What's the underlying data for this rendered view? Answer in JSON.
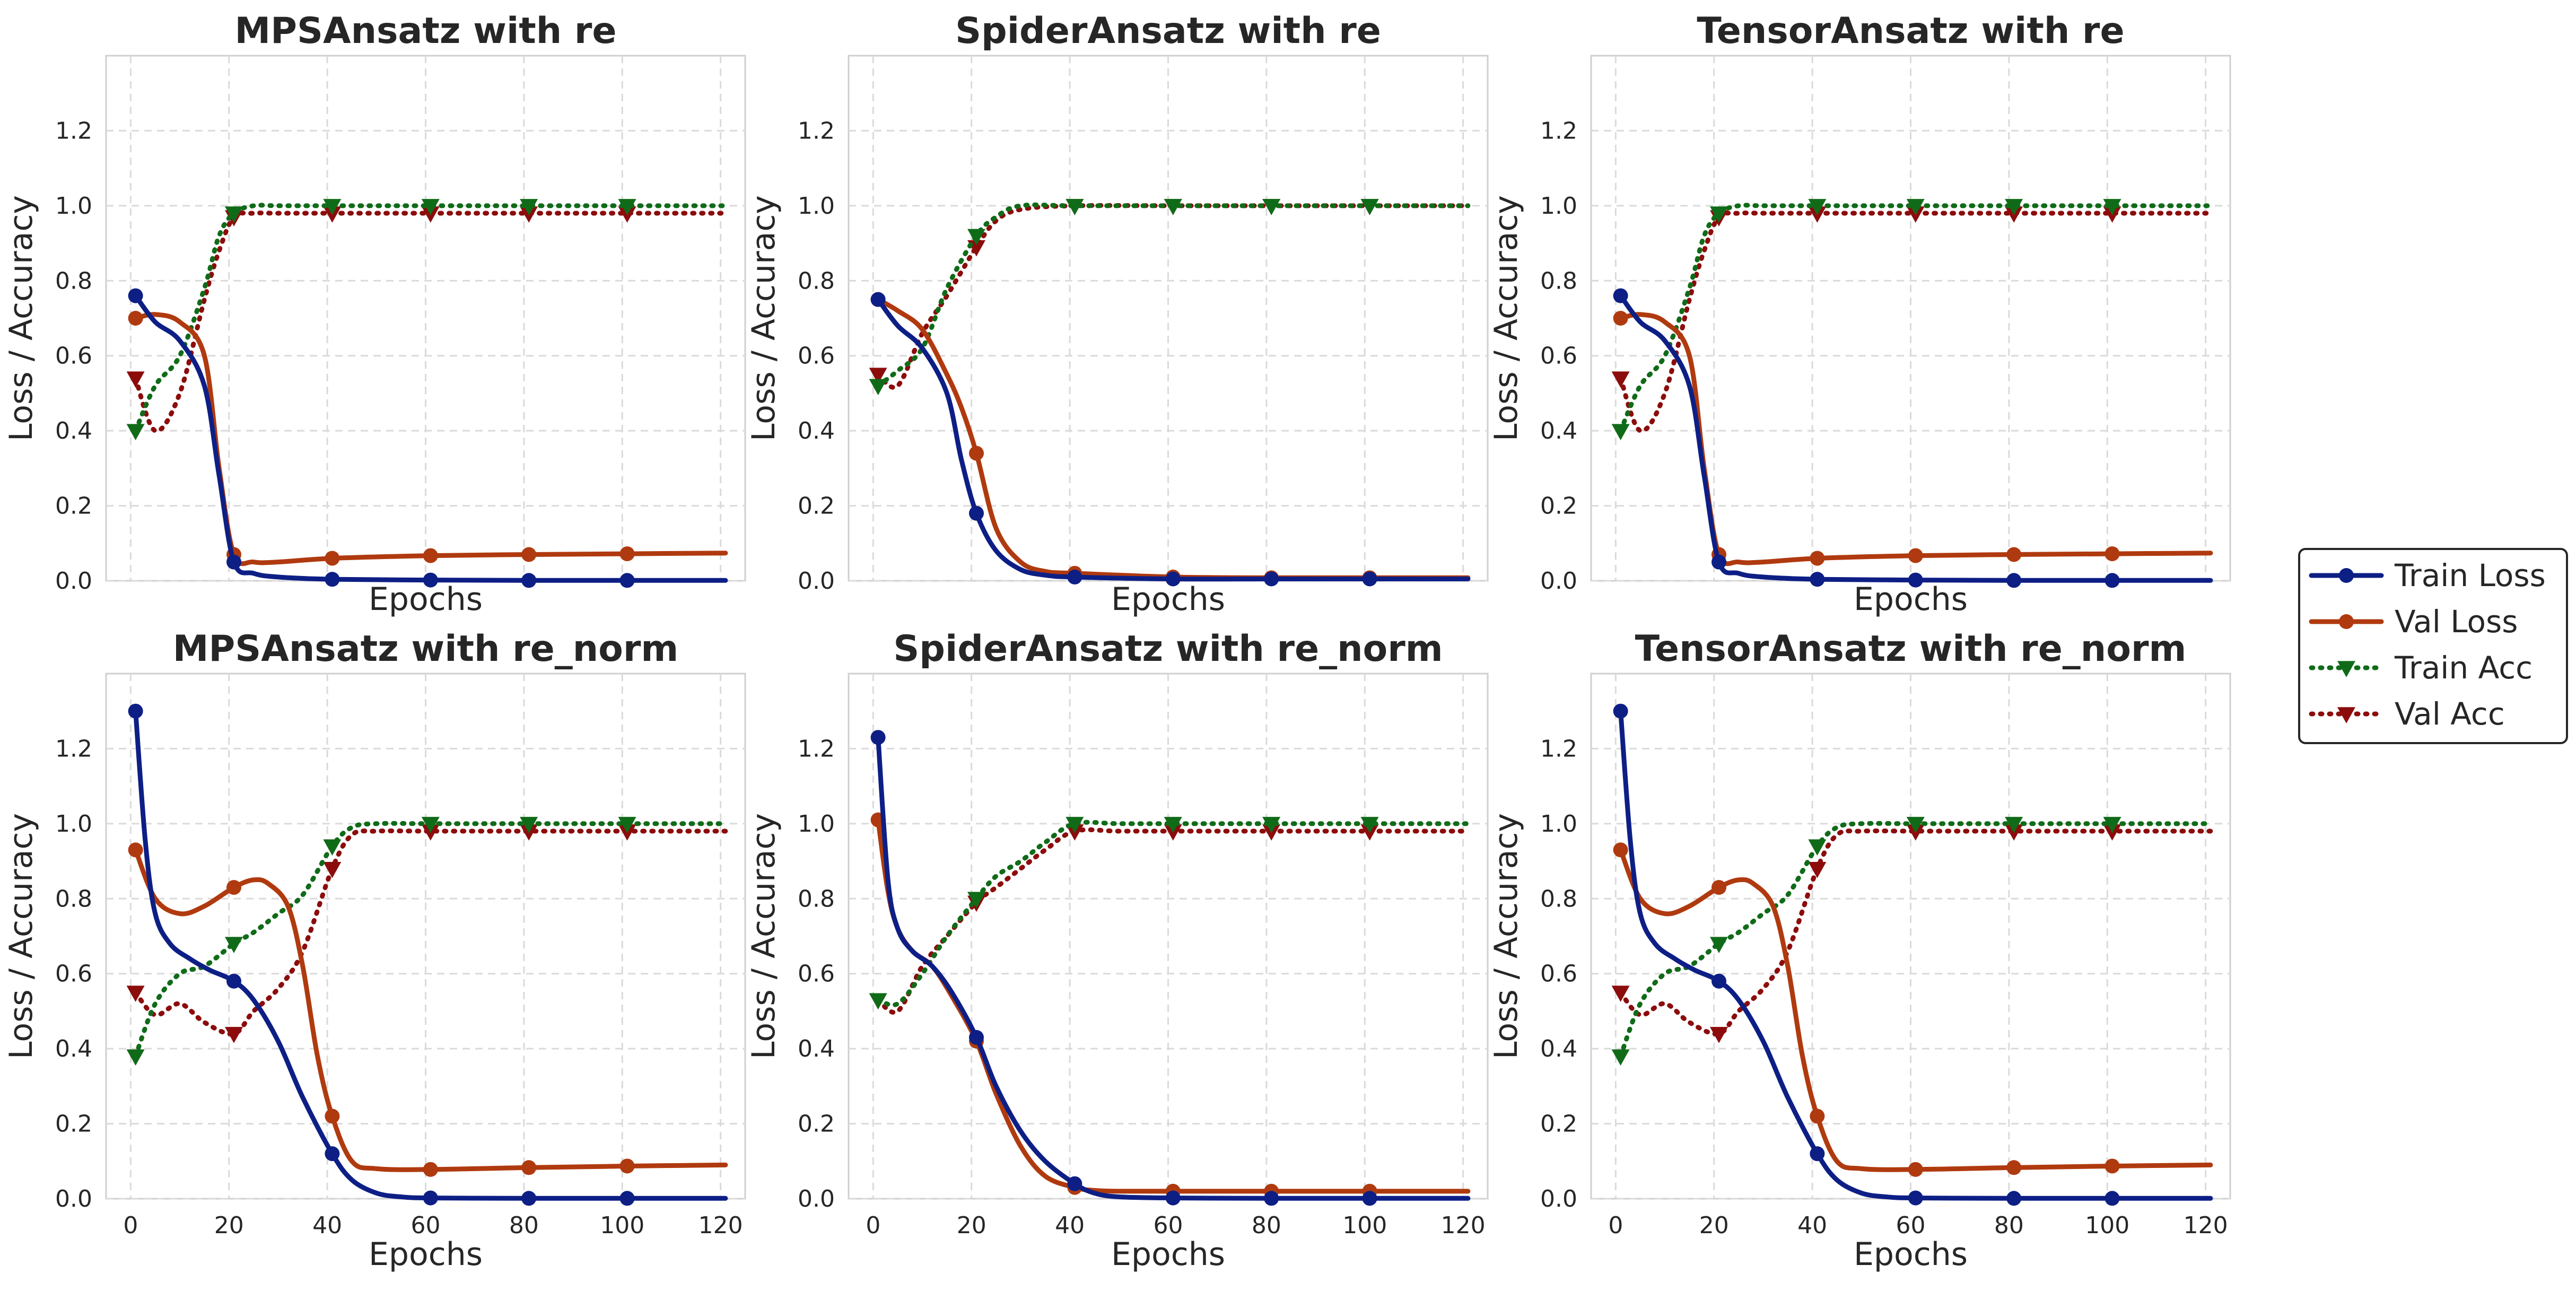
{
  "figure": {
    "colors": {
      "train_loss": "#0d1f85",
      "val_loss": "#b03a0f",
      "train_acc": "#106b18",
      "val_acc": "#8c0c0c"
    },
    "legend": {
      "placement": "center-right",
      "entries": [
        {
          "name": "Train Loss",
          "style": "solid",
          "marker": "circle",
          "color": "#0d1f85"
        },
        {
          "name": "Val Loss",
          "style": "solid",
          "marker": "circle",
          "color": "#b03a0f"
        },
        {
          "name": "Train Acc",
          "style": "dotted",
          "marker": "triangle-down",
          "color": "#106b18"
        },
        {
          "name": "Val Acc",
          "style": "dotted",
          "marker": "triangle-down",
          "color": "#8c0c0c"
        }
      ]
    }
  },
  "chart_data": [
    {
      "type": "line",
      "title": "MPSAnsatz with re",
      "xlabel": "Epochs",
      "ylabel": "Loss / Accuracy",
      "xlim": [
        -5,
        125
      ],
      "ylim": [
        0,
        1.4
      ],
      "xticks": [],
      "yticks": [
        "0.0",
        "0.2",
        "0.4",
        "0.6",
        "0.8",
        "1.0",
        "1.2"
      ],
      "grid": true,
      "marker_x": [
        1,
        21,
        41,
        61,
        81,
        101
      ],
      "series": [
        {
          "name": "Train Loss",
          "x": [
            1,
            5,
            10,
            15,
            18,
            21,
            25,
            30,
            41,
            61,
            81,
            101,
            121
          ],
          "values": [
            0.76,
            0.69,
            0.64,
            0.52,
            0.28,
            0.05,
            0.02,
            0.01,
            0.004,
            0.002,
            0.001,
            0.001,
            0.001
          ]
        },
        {
          "name": "Val Loss",
          "x": [
            1,
            5,
            10,
            15,
            18,
            21,
            25,
            30,
            41,
            61,
            81,
            101,
            121
          ],
          "values": [
            0.7,
            0.71,
            0.69,
            0.6,
            0.3,
            0.07,
            0.05,
            0.05,
            0.06,
            0.067,
            0.07,
            0.072,
            0.074
          ]
        },
        {
          "name": "Train Acc",
          "x": [
            1,
            5,
            10,
            15,
            18,
            21,
            25,
            30,
            41,
            61,
            81,
            101,
            121
          ],
          "values": [
            0.4,
            0.52,
            0.6,
            0.78,
            0.92,
            0.98,
            1.0,
            1.0,
            1.0,
            1.0,
            1.0,
            1.0,
            1.0
          ]
        },
        {
          "name": "Val Acc",
          "x": [
            1,
            5,
            10,
            15,
            18,
            21,
            25,
            30,
            41,
            61,
            81,
            101,
            121
          ],
          "values": [
            0.54,
            0.4,
            0.5,
            0.75,
            0.88,
            0.97,
            0.98,
            0.98,
            0.98,
            0.98,
            0.98,
            0.98,
            0.98
          ]
        }
      ]
    },
    {
      "type": "line",
      "title": "SpiderAnsatz with re",
      "xlabel": "Epochs",
      "ylabel": "Loss / Accuracy",
      "xlim": [
        -5,
        125
      ],
      "ylim": [
        0,
        1.4
      ],
      "xticks": [],
      "yticks": [
        "0.0",
        "0.2",
        "0.4",
        "0.6",
        "0.8",
        "1.0",
        "1.2"
      ],
      "grid": true,
      "marker_x": [
        1,
        21,
        41,
        61,
        81,
        101
      ],
      "series": [
        {
          "name": "Train Loss",
          "x": [
            1,
            5,
            10,
            15,
            18,
            21,
            25,
            30,
            35,
            41,
            61,
            81,
            101,
            121
          ],
          "values": [
            0.75,
            0.68,
            0.62,
            0.5,
            0.32,
            0.18,
            0.08,
            0.03,
            0.015,
            0.01,
            0.005,
            0.005,
            0.005,
            0.005
          ]
        },
        {
          "name": "Val Loss",
          "x": [
            1,
            5,
            10,
            15,
            18,
            21,
            25,
            30,
            35,
            41,
            61,
            81,
            101,
            121
          ],
          "values": [
            0.75,
            0.72,
            0.67,
            0.55,
            0.46,
            0.34,
            0.14,
            0.05,
            0.025,
            0.02,
            0.01,
            0.008,
            0.008,
            0.008
          ]
        },
        {
          "name": "Train Acc",
          "x": [
            1,
            5,
            10,
            15,
            21,
            25,
            30,
            41,
            61,
            81,
            101,
            121
          ],
          "values": [
            0.52,
            0.56,
            0.62,
            0.78,
            0.92,
            0.97,
            1.0,
            1.0,
            1.0,
            1.0,
            1.0,
            1.0
          ]
        },
        {
          "name": "Val Acc",
          "x": [
            1,
            5,
            10,
            15,
            21,
            25,
            30,
            41,
            61,
            81,
            101,
            121
          ],
          "values": [
            0.55,
            0.52,
            0.66,
            0.76,
            0.89,
            0.96,
            0.99,
            1.0,
            1.0,
            1.0,
            1.0,
            1.0
          ]
        }
      ]
    },
    {
      "type": "line",
      "title": "TensorAnsatz with re",
      "xlabel": "Epochs",
      "ylabel": "Loss / Accuracy",
      "xlim": [
        -5,
        125
      ],
      "ylim": [
        0,
        1.4
      ],
      "xticks": [],
      "yticks": [
        "0.0",
        "0.2",
        "0.4",
        "0.6",
        "0.8",
        "1.0",
        "1.2"
      ],
      "grid": true,
      "marker_x": [
        1,
        21,
        41,
        61,
        81,
        101
      ],
      "series": [
        {
          "name": "Train Loss",
          "x": [
            1,
            5,
            10,
            15,
            18,
            21,
            25,
            30,
            41,
            61,
            81,
            101,
            121
          ],
          "values": [
            0.76,
            0.69,
            0.64,
            0.52,
            0.28,
            0.05,
            0.02,
            0.01,
            0.004,
            0.002,
            0.001,
            0.001,
            0.001
          ]
        },
        {
          "name": "Val Loss",
          "x": [
            1,
            5,
            10,
            15,
            18,
            21,
            25,
            30,
            41,
            61,
            81,
            101,
            121
          ],
          "values": [
            0.7,
            0.71,
            0.69,
            0.6,
            0.3,
            0.07,
            0.05,
            0.05,
            0.06,
            0.067,
            0.07,
            0.072,
            0.074
          ]
        },
        {
          "name": "Train Acc",
          "x": [
            1,
            5,
            10,
            15,
            18,
            21,
            25,
            30,
            41,
            61,
            81,
            101,
            121
          ],
          "values": [
            0.4,
            0.52,
            0.6,
            0.78,
            0.92,
            0.98,
            1.0,
            1.0,
            1.0,
            1.0,
            1.0,
            1.0,
            1.0
          ]
        },
        {
          "name": "Val Acc",
          "x": [
            1,
            5,
            10,
            15,
            18,
            21,
            25,
            30,
            41,
            61,
            81,
            101,
            121
          ],
          "values": [
            0.54,
            0.4,
            0.5,
            0.75,
            0.88,
            0.97,
            0.98,
            0.98,
            0.98,
            0.98,
            0.98,
            0.98,
            0.98
          ]
        }
      ]
    },
    {
      "type": "line",
      "title": "MPSAnsatz with re_norm",
      "xlabel": "Epochs",
      "ylabel": "Loss / Accuracy",
      "xlim": [
        -5,
        125
      ],
      "ylim": [
        0,
        1.4
      ],
      "xticks": [
        "0",
        "20",
        "40",
        "60",
        "80",
        "100",
        "120"
      ],
      "yticks": [
        "0.0",
        "0.2",
        "0.4",
        "0.6",
        "0.8",
        "1.0",
        "1.2"
      ],
      "grid": true,
      "marker_x": [
        1,
        21,
        41,
        61,
        81,
        101
      ],
      "series": [
        {
          "name": "Train Loss",
          "x": [
            1,
            3,
            5,
            8,
            12,
            16,
            21,
            25,
            30,
            35,
            41,
            45,
            50,
            55,
            61,
            81,
            101,
            121
          ],
          "values": [
            1.3,
            0.95,
            0.76,
            0.68,
            0.64,
            0.61,
            0.58,
            0.53,
            0.42,
            0.27,
            0.12,
            0.05,
            0.015,
            0.005,
            0.002,
            0.001,
            0.001,
            0.001
          ]
        },
        {
          "name": "Val Loss",
          "x": [
            1,
            5,
            10,
            15,
            21,
            25,
            28,
            32,
            35,
            38,
            41,
            45,
            50,
            61,
            81,
            101,
            121
          ],
          "values": [
            0.93,
            0.8,
            0.76,
            0.78,
            0.83,
            0.85,
            0.84,
            0.78,
            0.62,
            0.38,
            0.22,
            0.1,
            0.08,
            0.078,
            0.083,
            0.087,
            0.09
          ]
        },
        {
          "name": "Train Acc",
          "x": [
            1,
            5,
            10,
            15,
            21,
            25,
            30,
            35,
            41,
            45,
            50,
            61,
            81,
            101,
            121
          ],
          "values": [
            0.38,
            0.52,
            0.6,
            0.62,
            0.68,
            0.71,
            0.76,
            0.81,
            0.94,
            0.99,
            1.0,
            1.0,
            1.0,
            1.0,
            1.0
          ]
        },
        {
          "name": "Val Acc",
          "x": [
            1,
            5,
            10,
            15,
            21,
            25,
            30,
            35,
            41,
            45,
            50,
            61,
            81,
            101,
            121
          ],
          "values": [
            0.55,
            0.49,
            0.52,
            0.47,
            0.44,
            0.5,
            0.56,
            0.66,
            0.88,
            0.97,
            0.98,
            0.98,
            0.98,
            0.98,
            0.98
          ]
        }
      ]
    },
    {
      "type": "line",
      "title": "SpiderAnsatz with re_norm",
      "xlabel": "Epochs",
      "ylabel": "Loss / Accuracy",
      "xlim": [
        -5,
        125
      ],
      "ylim": [
        0,
        1.4
      ],
      "xticks": [
        "0",
        "20",
        "40",
        "60",
        "80",
        "100",
        "120"
      ],
      "yticks": [
        "0.0",
        "0.2",
        "0.4",
        "0.6",
        "0.8",
        "1.0",
        "1.2"
      ],
      "grid": true,
      "marker_x": [
        1,
        21,
        41,
        61,
        81,
        101
      ],
      "series": [
        {
          "name": "Train Loss",
          "x": [
            1,
            3,
            5,
            8,
            12,
            16,
            21,
            25,
            30,
            35,
            41,
            45,
            50,
            61,
            81,
            101,
            121
          ],
          "values": [
            1.23,
            0.85,
            0.72,
            0.66,
            0.62,
            0.55,
            0.43,
            0.3,
            0.18,
            0.1,
            0.04,
            0.015,
            0.005,
            0.002,
            0.001,
            0.001,
            0.001
          ]
        },
        {
          "name": "Val Loss",
          "x": [
            1,
            3,
            5,
            8,
            12,
            16,
            21,
            25,
            30,
            35,
            41,
            45,
            50,
            61,
            81,
            101,
            121
          ],
          "values": [
            1.01,
            0.82,
            0.72,
            0.66,
            0.62,
            0.54,
            0.42,
            0.28,
            0.14,
            0.06,
            0.03,
            0.022,
            0.02,
            0.02,
            0.02,
            0.02,
            0.02
          ]
        },
        {
          "name": "Train Acc",
          "x": [
            1,
            5,
            10,
            15,
            21,
            25,
            30,
            35,
            41,
            50,
            61,
            81,
            101,
            121
          ],
          "values": [
            0.53,
            0.52,
            0.6,
            0.7,
            0.8,
            0.86,
            0.9,
            0.95,
            1.0,
            1.0,
            1.0,
            1.0,
            1.0,
            1.0
          ]
        },
        {
          "name": "Val Acc",
          "x": [
            1,
            5,
            10,
            15,
            21,
            25,
            30,
            35,
            41,
            50,
            61,
            81,
            101,
            121
          ],
          "values": [
            0.53,
            0.5,
            0.62,
            0.7,
            0.79,
            0.83,
            0.88,
            0.93,
            0.98,
            0.98,
            0.98,
            0.98,
            0.98,
            0.98
          ]
        }
      ]
    },
    {
      "type": "line",
      "title": "TensorAnsatz with re_norm",
      "xlabel": "Epochs",
      "ylabel": "Loss / Accuracy",
      "xlim": [
        -5,
        125
      ],
      "ylim": [
        0,
        1.4
      ],
      "xticks": [
        "0",
        "20",
        "40",
        "60",
        "80",
        "100",
        "120"
      ],
      "yticks": [
        "0.0",
        "0.2",
        "0.4",
        "0.6",
        "0.8",
        "1.0",
        "1.2"
      ],
      "grid": true,
      "marker_x": [
        1,
        21,
        41,
        61,
        81,
        101
      ],
      "series": [
        {
          "name": "Train Loss",
          "x": [
            1,
            3,
            5,
            8,
            12,
            16,
            21,
            25,
            30,
            35,
            41,
            45,
            50,
            55,
            61,
            81,
            101,
            121
          ],
          "values": [
            1.3,
            0.95,
            0.76,
            0.68,
            0.64,
            0.61,
            0.58,
            0.53,
            0.42,
            0.27,
            0.12,
            0.05,
            0.015,
            0.005,
            0.002,
            0.001,
            0.001,
            0.001
          ]
        },
        {
          "name": "Val Loss",
          "x": [
            1,
            5,
            10,
            15,
            21,
            25,
            28,
            32,
            35,
            38,
            41,
            45,
            50,
            61,
            81,
            101,
            121
          ],
          "values": [
            0.93,
            0.8,
            0.76,
            0.78,
            0.83,
            0.85,
            0.84,
            0.78,
            0.62,
            0.38,
            0.22,
            0.1,
            0.08,
            0.078,
            0.083,
            0.087,
            0.09
          ]
        },
        {
          "name": "Train Acc",
          "x": [
            1,
            5,
            10,
            15,
            21,
            25,
            30,
            35,
            41,
            45,
            50,
            61,
            81,
            101,
            121
          ],
          "values": [
            0.38,
            0.52,
            0.6,
            0.62,
            0.68,
            0.71,
            0.76,
            0.81,
            0.94,
            0.99,
            1.0,
            1.0,
            1.0,
            1.0,
            1.0
          ]
        },
        {
          "name": "Val Acc",
          "x": [
            1,
            5,
            10,
            15,
            21,
            25,
            30,
            35,
            41,
            45,
            50,
            61,
            81,
            101,
            121
          ],
          "values": [
            0.55,
            0.49,
            0.52,
            0.47,
            0.44,
            0.5,
            0.56,
            0.66,
            0.88,
            0.97,
            0.98,
            0.98,
            0.98,
            0.98,
            0.98
          ]
        }
      ]
    }
  ]
}
